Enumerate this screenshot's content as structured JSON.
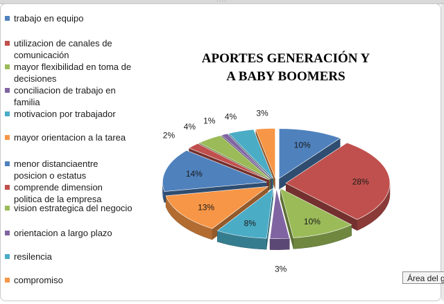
{
  "chart_data": {
    "type": "pie",
    "title_lines": [
      "APORTES GENERACIÓN Y",
      "A BABY BOOMERS"
    ],
    "unit": "%",
    "categories": [
      "trabajo en equipo",
      "utilizacion de canales de comunicación",
      "mayor flexibilidad en toma de decisiones",
      "conciliacion de trabajo en familia",
      "motivacion por trabajador",
      "mayor orientacion a la tarea",
      "menor distanciaentre posicion o estatus",
      "comprende dimension politica de la empresa",
      "vision estrategica del negocio",
      "orientacion a largo plazo",
      "resilencia",
      "compromiso"
    ],
    "legend_lines": [
      [
        "trabajo en equipo"
      ],
      [
        "utilizacion de canales de",
        "comunicación"
      ],
      [
        "mayor flexibilidad en toma de",
        "decisiones"
      ],
      [
        "conciliacion de trabajo en",
        "familia"
      ],
      [
        "motivacion por trabajador"
      ],
      [
        "mayor orientacion a la tarea"
      ],
      [
        "menor distanciaentre",
        "posicion o estatus"
      ],
      [
        "comprende dimension",
        "politica de la empresa"
      ],
      [
        "vision estrategica del negocio"
      ],
      [
        "orientacion a largo plazo"
      ],
      [
        "resilencia"
      ],
      [
        "compromiso"
      ]
    ],
    "values": [
      10,
      28,
      10,
      3,
      8,
      13,
      14,
      2,
      4,
      1,
      4,
      3
    ],
    "data_labels": [
      "10%",
      "28%",
      "10%",
      "3%",
      "8%",
      "13%",
      "14%",
      "2%",
      "4%",
      "1%",
      "4%",
      "3%"
    ],
    "colors": [
      "#4f81bd",
      "#c0504d",
      "#9bbb59",
      "#8064a2",
      "#4bacc6",
      "#f79646",
      "#4f81bd",
      "#c0504d",
      "#9bbb59",
      "#8064a2",
      "#4bacc6",
      "#f79646"
    ],
    "style": "3d exploded pie",
    "legend_position": "left"
  },
  "tooltip": {
    "text": "Área del gráfico"
  }
}
